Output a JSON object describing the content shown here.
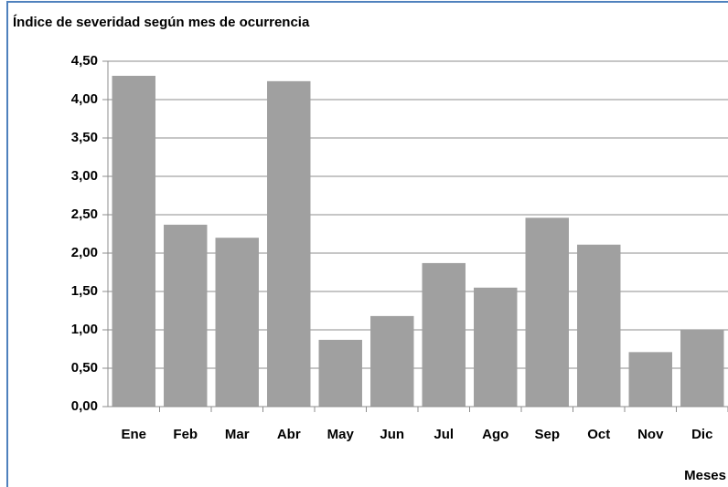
{
  "chart_data": {
    "type": "bar",
    "title": "Índice de severidad según mes de ocurrencia",
    "x_label": "Meses",
    "categories": [
      "Ene",
      "Feb",
      "Mar",
      "Abr",
      "May",
      "Jun",
      "Jul",
      "Ago",
      "Sep",
      "Oct",
      "Nov",
      "Dic"
    ],
    "values": [
      4.31,
      2.37,
      2.2,
      4.24,
      0.87,
      1.18,
      1.87,
      1.55,
      2.46,
      2.11,
      0.71,
      1.0
    ],
    "color": "#a0a0a0",
    "ylim": [
      0,
      4.5
    ],
    "yticks": [
      {
        "value": 0,
        "label": "0,00"
      },
      {
        "value": 0.5,
        "label": "0,50"
      },
      {
        "value": 1,
        "label": "1,00"
      },
      {
        "value": 1.5,
        "label": "1,50"
      },
      {
        "value": 2,
        "label": "2,00"
      },
      {
        "value": 2.5,
        "label": "2,50"
      },
      {
        "value": 3,
        "label": "3,00"
      },
      {
        "value": 3.5,
        "label": "3,50"
      },
      {
        "value": 4,
        "label": "4,00"
      },
      {
        "value": 4.5,
        "label": "4,50"
      }
    ],
    "grid": true
  }
}
